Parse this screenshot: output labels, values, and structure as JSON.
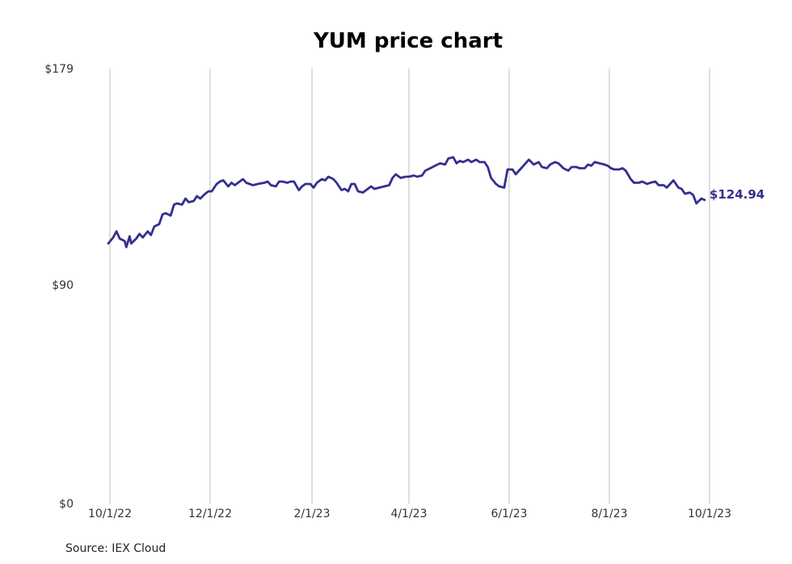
{
  "chart_data": {
    "type": "line",
    "title": "YUM price chart",
    "source": "Source: IEX Cloud",
    "y_ticks": [
      "$179",
      "$90",
      "$0"
    ],
    "y_tick_values": [
      179,
      90,
      0
    ],
    "ylim": [
      0,
      179
    ],
    "x_ticks": [
      "10/1/22",
      "12/1/22",
      "2/1/23",
      "4/1/23",
      "6/1/23",
      "8/1/23",
      "10/1/23"
    ],
    "x_tick_dates": [
      "2022-10-01",
      "2022-12-01",
      "2023-02-01",
      "2023-04-01",
      "2023-06-01",
      "2023-08-01",
      "2023-10-01"
    ],
    "xlim": [
      "2022-10-01",
      "2023-10-01"
    ],
    "grid": "vertical",
    "last_value_label": "$124.94",
    "series": [
      {
        "color": "#332f8f",
        "points": [
          [
            "2022-09-30",
            107.0
          ],
          [
            "2022-10-03",
            109.5
          ],
          [
            "2022-10-05",
            112.0
          ],
          [
            "2022-10-07",
            109.0
          ],
          [
            "2022-10-10",
            108.0
          ],
          [
            "2022-10-11",
            105.5
          ],
          [
            "2022-10-13",
            110.0
          ],
          [
            "2022-10-14",
            107.0
          ],
          [
            "2022-10-17",
            109.0
          ],
          [
            "2022-10-19",
            111.0
          ],
          [
            "2022-10-21",
            109.5
          ],
          [
            "2022-10-24",
            112.0
          ],
          [
            "2022-10-26",
            110.5
          ],
          [
            "2022-10-28",
            114.0
          ],
          [
            "2022-10-31",
            115.0
          ],
          [
            "2022-11-02",
            119.0
          ],
          [
            "2022-11-04",
            119.5
          ],
          [
            "2022-11-07",
            118.5
          ],
          [
            "2022-11-09",
            123.0
          ],
          [
            "2022-11-11",
            123.5
          ],
          [
            "2022-11-14",
            123.0
          ],
          [
            "2022-11-16",
            125.5
          ],
          [
            "2022-11-18",
            124.0
          ],
          [
            "2022-11-21",
            124.5
          ],
          [
            "2022-11-23",
            126.5
          ],
          [
            "2022-11-25",
            125.5
          ],
          [
            "2022-11-28",
            127.5
          ],
          [
            "2022-11-30",
            128.5
          ],
          [
            "2022-12-02",
            128.5
          ],
          [
            "2022-12-05",
            131.5
          ],
          [
            "2022-12-07",
            132.5
          ],
          [
            "2022-12-09",
            133.0
          ],
          [
            "2022-12-12",
            130.5
          ],
          [
            "2022-12-14",
            132.0
          ],
          [
            "2022-12-16",
            131.0
          ],
          [
            "2022-12-19",
            132.5
          ],
          [
            "2022-12-21",
            133.5
          ],
          [
            "2022-12-23",
            132.0
          ],
          [
            "2022-12-27",
            131.0
          ],
          [
            "2022-12-30",
            131.5
          ],
          [
            "2023-01-03",
            132.0
          ],
          [
            "2023-01-05",
            132.5
          ],
          [
            "2023-01-07",
            131.0
          ],
          [
            "2023-01-10",
            130.5
          ],
          [
            "2023-01-12",
            132.5
          ],
          [
            "2023-01-14",
            132.5
          ],
          [
            "2023-01-17",
            132.0
          ],
          [
            "2023-01-19",
            132.5
          ],
          [
            "2023-01-21",
            132.5
          ],
          [
            "2023-01-24",
            129.0
          ],
          [
            "2023-01-26",
            130.5
          ],
          [
            "2023-01-28",
            131.5
          ],
          [
            "2023-01-31",
            131.5
          ],
          [
            "2023-02-02",
            130.0
          ],
          [
            "2023-02-04",
            132.0
          ],
          [
            "2023-02-07",
            133.5
          ],
          [
            "2023-02-09",
            133.0
          ],
          [
            "2023-02-11",
            134.5
          ],
          [
            "2023-02-14",
            133.5
          ],
          [
            "2023-02-16",
            132.0
          ],
          [
            "2023-02-19",
            129.0
          ],
          [
            "2023-02-21",
            129.5
          ],
          [
            "2023-02-23",
            128.5
          ],
          [
            "2023-02-25",
            131.5
          ],
          [
            "2023-02-27",
            131.5
          ],
          [
            "2023-03-01",
            128.5
          ],
          [
            "2023-03-04",
            128.0
          ],
          [
            "2023-03-06",
            129.0
          ],
          [
            "2023-03-09",
            130.5
          ],
          [
            "2023-03-11",
            129.5
          ],
          [
            "2023-03-14",
            130.0
          ],
          [
            "2023-03-17",
            130.5
          ],
          [
            "2023-03-20",
            131.0
          ],
          [
            "2023-03-22",
            134.0
          ],
          [
            "2023-03-24",
            135.5
          ],
          [
            "2023-03-27",
            134.0
          ],
          [
            "2023-03-30",
            134.5
          ],
          [
            "2023-04-01",
            134.5
          ],
          [
            "2023-04-04",
            135.0
          ],
          [
            "2023-04-06",
            134.5
          ],
          [
            "2023-04-09",
            135.0
          ],
          [
            "2023-04-11",
            137.0
          ],
          [
            "2023-04-14",
            138.0
          ],
          [
            "2023-04-17",
            139.0
          ],
          [
            "2023-04-20",
            140.0
          ],
          [
            "2023-04-23",
            139.5
          ],
          [
            "2023-04-25",
            142.0
          ],
          [
            "2023-04-28",
            142.5
          ],
          [
            "2023-04-30",
            140.0
          ],
          [
            "2023-05-02",
            141.0
          ],
          [
            "2023-05-04",
            140.5
          ],
          [
            "2023-05-07",
            141.5
          ],
          [
            "2023-05-09",
            140.5
          ],
          [
            "2023-05-12",
            141.5
          ],
          [
            "2023-05-14",
            140.5
          ],
          [
            "2023-05-17",
            140.5
          ],
          [
            "2023-05-19",
            138.5
          ],
          [
            "2023-05-21",
            134.0
          ],
          [
            "2023-05-24",
            131.5
          ],
          [
            "2023-05-26",
            130.5
          ],
          [
            "2023-05-29",
            130.0
          ],
          [
            "2023-05-31",
            137.5
          ],
          [
            "2023-06-03",
            137.5
          ],
          [
            "2023-06-05",
            135.5
          ],
          [
            "2023-06-07",
            137.0
          ],
          [
            "2023-06-09",
            138.5
          ],
          [
            "2023-06-11",
            140.0
          ],
          [
            "2023-06-13",
            141.5
          ],
          [
            "2023-06-16",
            139.5
          ],
          [
            "2023-06-19",
            140.5
          ],
          [
            "2023-06-21",
            138.5
          ],
          [
            "2023-06-24",
            138.0
          ],
          [
            "2023-06-26",
            139.5
          ],
          [
            "2023-06-29",
            140.5
          ],
          [
            "2023-07-01",
            140.0
          ],
          [
            "2023-07-04",
            138.0
          ],
          [
            "2023-07-07",
            137.0
          ],
          [
            "2023-07-09",
            138.5
          ],
          [
            "2023-07-12",
            138.5
          ],
          [
            "2023-07-14",
            138.0
          ],
          [
            "2023-07-17",
            138.0
          ],
          [
            "2023-07-19",
            139.5
          ],
          [
            "2023-07-21",
            139.0
          ],
          [
            "2023-07-23",
            140.5
          ],
          [
            "2023-07-26",
            140.0
          ],
          [
            "2023-07-29",
            139.5
          ],
          [
            "2023-07-31",
            139.0
          ],
          [
            "2023-08-02",
            138.0
          ],
          [
            "2023-08-04",
            137.5
          ],
          [
            "2023-08-07",
            137.5
          ],
          [
            "2023-08-09",
            138.0
          ],
          [
            "2023-08-11",
            137.0
          ],
          [
            "2023-08-14",
            133.5
          ],
          [
            "2023-08-16",
            132.0
          ],
          [
            "2023-08-19",
            132.0
          ],
          [
            "2023-08-21",
            132.5
          ],
          [
            "2023-08-24",
            131.5
          ],
          [
            "2023-08-26",
            132.0
          ],
          [
            "2023-08-29",
            132.5
          ],
          [
            "2023-08-31",
            131.0
          ],
          [
            "2023-09-03",
            131.0
          ],
          [
            "2023-09-05",
            130.0
          ],
          [
            "2023-09-07",
            131.5
          ],
          [
            "2023-09-09",
            133.0
          ],
          [
            "2023-09-12",
            130.0
          ],
          [
            "2023-09-14",
            129.5
          ],
          [
            "2023-09-16",
            127.5
          ],
          [
            "2023-09-19",
            128.0
          ],
          [
            "2023-09-21",
            127.0
          ],
          [
            "2023-09-23",
            123.5
          ],
          [
            "2023-09-26",
            125.5
          ],
          [
            "2023-09-28",
            124.94
          ]
        ]
      }
    ]
  }
}
